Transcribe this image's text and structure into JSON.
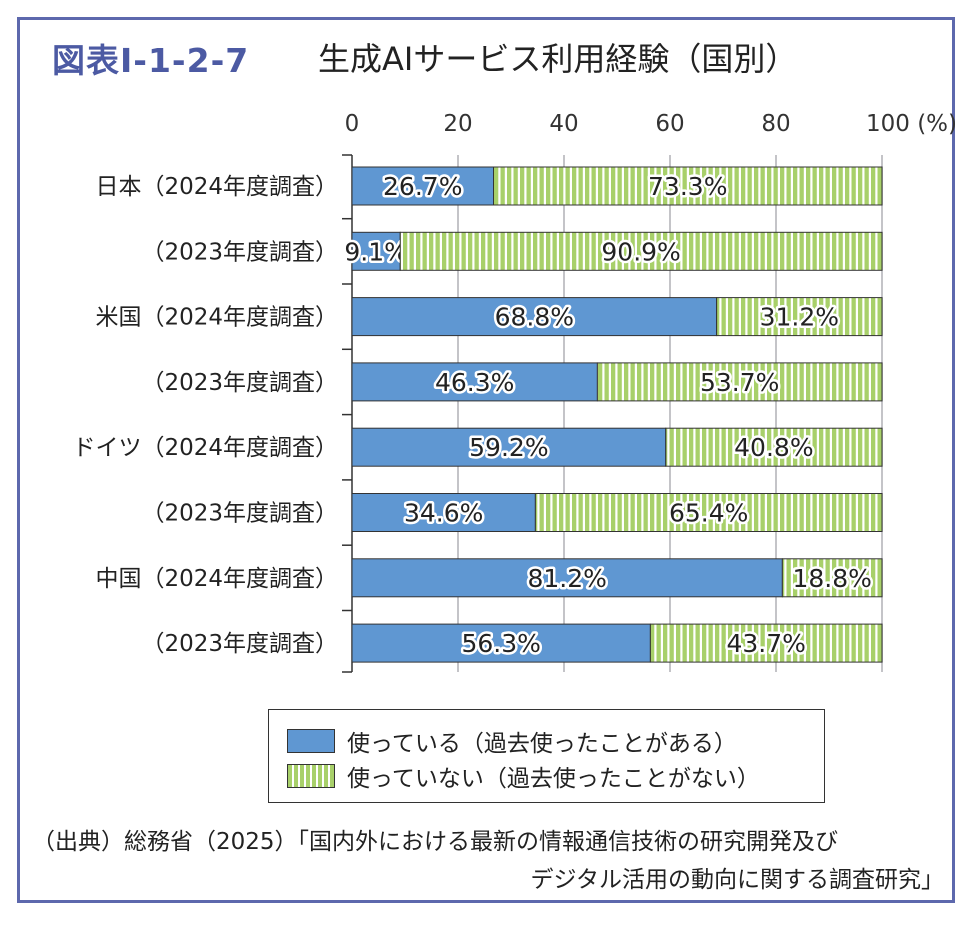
{
  "title": {
    "number": "図表Ⅰ-1-2-7",
    "text": "生成AIサービス利用経験（国別）"
  },
  "chart_data": {
    "type": "bar",
    "orientation": "horizontal",
    "stacked": true,
    "title": "生成AIサービス利用経験（国別）",
    "xlim": [
      0,
      100
    ],
    "xticks": [
      "0",
      "20",
      "40",
      "60",
      "80",
      "100 (%)"
    ],
    "grid": true,
    "categories": [
      "日本（2024年度調査）",
      "（2023年度調査）",
      "米国（2024年度調査）",
      "（2023年度調査）",
      "ドイツ（2024年度調査）",
      "（2023年度調査）",
      "中国（2024年度調査）",
      "（2023年度調査）"
    ],
    "series": [
      {
        "name": "使っている（過去使ったことがある）",
        "color": "#5f97d2",
        "values": [
          26.7,
          9.1,
          68.8,
          46.3,
          59.2,
          34.6,
          81.2,
          56.3
        ],
        "labels": [
          "26.7%",
          "9.1%",
          "68.8%",
          "46.3%",
          "59.2%",
          "34.6%",
          "81.2%",
          "56.3%"
        ]
      },
      {
        "name": "使っていない（過去使ったことがない）",
        "color": "#a8d06a",
        "pattern": "vertical-stripes",
        "values": [
          73.3,
          90.9,
          31.2,
          53.7,
          40.8,
          65.4,
          18.8,
          43.7
        ],
        "labels": [
          "73.3%",
          "90.9%",
          "31.2%",
          "53.7%",
          "40.8%",
          "65.4%",
          "18.8%",
          "43.7%"
        ]
      }
    ],
    "legend": "bottom"
  },
  "source": {
    "line1": "（出典）総務省（2025）「国内外における最新の情報通信技術の研究開発及び",
    "line2": "デジタル活用の動向に関する調査研究」"
  }
}
